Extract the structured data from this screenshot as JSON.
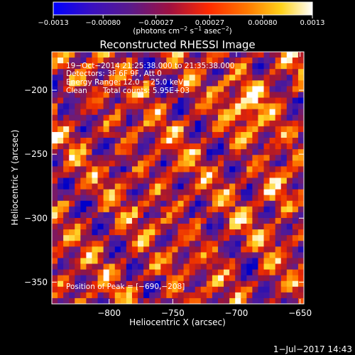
{
  "chart_data": {
    "type": "heatmap",
    "title": "Reconstructed RHESSI Image",
    "xlabel": "Heliocentric X (arcsec)",
    "ylabel": "Heliocentric Y (arcsec)",
    "xlim": [
      -845,
      -647
    ],
    "ylim": [
      -367,
      -170
    ],
    "x_ticks": [
      -800,
      -750,
      -700,
      -650
    ],
    "x_tick_labels": [
      "−800",
      "−750",
      "−700",
      "−650"
    ],
    "y_ticks": [
      -200,
      -250,
      -300,
      -350
    ],
    "y_tick_labels": [
      "−200",
      "−250",
      "−300",
      "−350"
    ],
    "colorbar": {
      "range": [
        -0.0013,
        0.0013
      ],
      "ticks": [
        -0.0013,
        -0.0008,
        -0.00027,
        0.00027,
        0.0008,
        0.0013
      ],
      "tick_labels": [
        "−0.0013",
        "−0.00080",
        "−0.00027",
        "0.00027",
        "0.00080",
        "0.0013"
      ],
      "units_text": "(photons cm",
      "units_exp1": "−2",
      "units_mid": " s",
      "units_exp2": "−1",
      "units_end": " asec",
      "units_exp3": "−2",
      "units_close": ")",
      "colors": [
        "#0000ff",
        "#4b0082",
        "#7a1fa2",
        "#c0102a",
        "#ff4500",
        "#ffa500",
        "#ffff40",
        "#ffffff"
      ]
    },
    "annotations": {
      "line1": "19−Oct−2014 21:25:38.000 to 21:35:38.000",
      "line2": "Detectors: 3F 6F 9F, Att 0",
      "line3": "Energy Range: 12.0 − 25.0 keV",
      "line4a": "Clean",
      "line4b": "Total counts: 5.95E+03",
      "peak": "Position of Peak = [−690,−208]"
    },
    "peak_position": [
      -690,
      -208
    ],
    "grid": false
  },
  "footer": {
    "date": "1−Jul−2017 14:43"
  }
}
